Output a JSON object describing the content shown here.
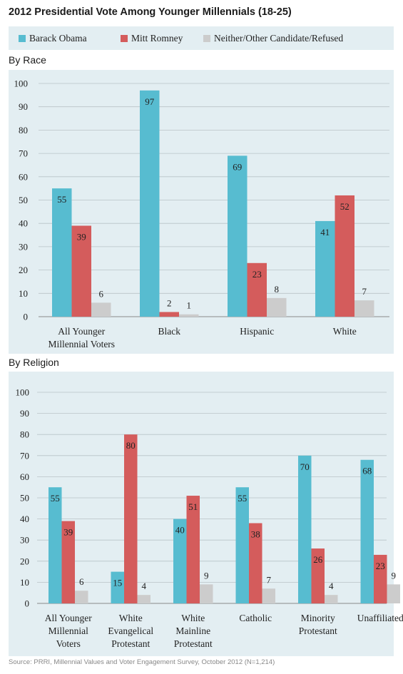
{
  "title": "2012 Presidential Vote Among Younger Millennials (18-25)",
  "source": "Source: PRRI, Millennial Values and Voter Engagement Survey, October 2012 (N=1,214)",
  "colors": {
    "obama": "#57bcd0",
    "romney": "#d45c5c",
    "other": "#cccccc",
    "panel": "#e3eef2"
  },
  "legend": [
    {
      "label": "Barack Obama",
      "color": "#57bcd0"
    },
    {
      "label": "Mitt Romney",
      "color": "#d45c5c"
    },
    {
      "label": "Neither/Other Candidate/Refused",
      "color": "#cccccc"
    }
  ],
  "sections": {
    "race": "By Race",
    "religion": "By Religion"
  },
  "chart_data": [
    {
      "type": "bar",
      "title": "By Race",
      "categories": [
        [
          "All Younger",
          "Millennial Voters"
        ],
        [
          "Black"
        ],
        [
          "Hispanic"
        ],
        [
          "White"
        ]
      ],
      "series": [
        {
          "name": "Barack Obama",
          "values": [
            55,
            97,
            69,
            41
          ]
        },
        {
          "name": "Mitt Romney",
          "values": [
            39,
            2,
            23,
            52
          ]
        },
        {
          "name": "Neither/Other Candidate/Refused",
          "values": [
            6,
            1,
            8,
            7
          ]
        }
      ],
      "ylim": [
        0,
        100
      ],
      "yticks": [
        0,
        10,
        20,
        30,
        40,
        50,
        60,
        70,
        80,
        90,
        100
      ],
      "grid": true
    },
    {
      "type": "bar",
      "title": "By Religion",
      "categories": [
        [
          "All Younger",
          "Millennial",
          "Voters"
        ],
        [
          "White",
          "Evangelical",
          "Protestant"
        ],
        [
          "White",
          "Mainline",
          "Protestant"
        ],
        [
          "Catholic"
        ],
        [
          "Minority",
          "Protestant"
        ],
        [
          "Unaffiliated"
        ]
      ],
      "series": [
        {
          "name": "Barack Obama",
          "values": [
            55,
            15,
            40,
            55,
            70,
            68
          ]
        },
        {
          "name": "Mitt Romney",
          "values": [
            39,
            80,
            51,
            38,
            26,
            23
          ]
        },
        {
          "name": "Neither/Other Candidate/Refused",
          "values": [
            6,
            4,
            9,
            7,
            4,
            9
          ]
        }
      ],
      "ylim": [
        0,
        100
      ],
      "yticks": [
        0,
        10,
        20,
        30,
        40,
        50,
        60,
        70,
        80,
        90,
        100
      ],
      "grid": true
    }
  ]
}
